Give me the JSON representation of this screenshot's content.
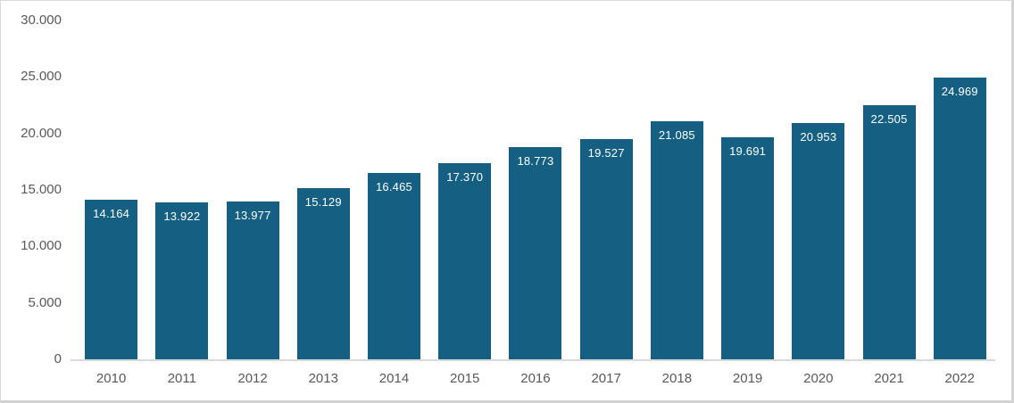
{
  "chart_data": {
    "type": "bar",
    "title": "",
    "xlabel": "",
    "ylabel": "",
    "categories": [
      "2010",
      "2011",
      "2012",
      "2013",
      "2014",
      "2015",
      "2016",
      "2017",
      "2018",
      "2019",
      "2020",
      "2021",
      "2022"
    ],
    "values": [
      14164,
      13922,
      13977,
      15129,
      16465,
      17370,
      18773,
      19527,
      21085,
      19691,
      20953,
      22505,
      24969
    ],
    "bar_labels": [
      "14.164",
      "13.922",
      "13.977",
      "15.129",
      "16.465",
      "17.370",
      "18.773",
      "19.527",
      "21.085",
      "19.691",
      "20.953",
      "22.505",
      "24.969"
    ],
    "y_ticks": [
      "30.000",
      "25.000",
      "20.000",
      "15.000",
      "10.000",
      "5.000",
      "0"
    ],
    "ylim": [
      0,
      30000
    ],
    "grid": false,
    "legend": false,
    "bar_label_position": "inside-top",
    "colors": {
      "bar": "#156082",
      "bar_label_text": "#ffffff",
      "axis_text": "#595959",
      "axis_line": "#d9d9d9",
      "background": "#ffffff",
      "frame_border": "#d9d9d9"
    }
  }
}
